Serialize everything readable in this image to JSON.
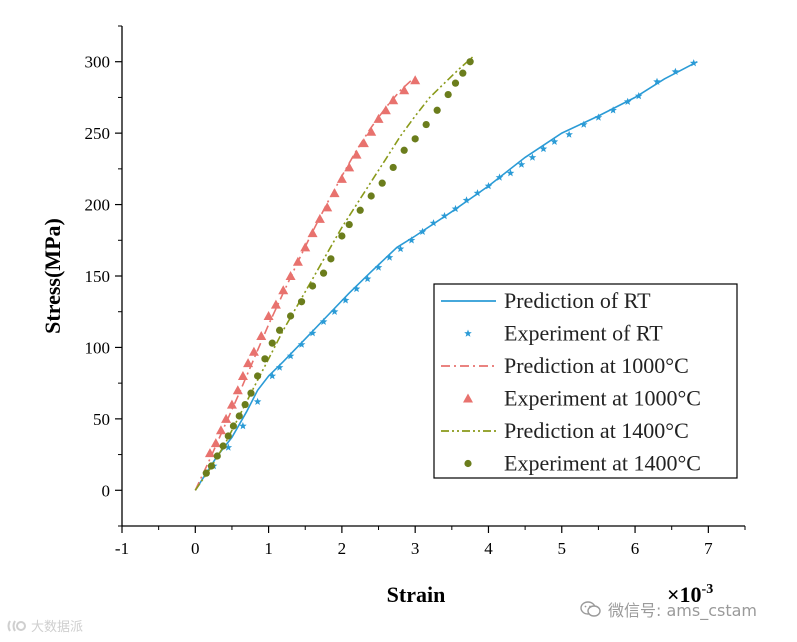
{
  "chart_data": {
    "type": "line",
    "title": "",
    "xlabel": "Strain",
    "x_multiplier": "×10",
    "x_multiplier_exp": "-3",
    "ylabel": "Stress(MPa)",
    "xlim": [
      -1,
      7.5
    ],
    "ylim": [
      -25,
      325
    ],
    "x_ticks": [
      -1,
      0,
      1,
      2,
      3,
      4,
      5,
      6,
      7
    ],
    "y_ticks": [
      0,
      50,
      100,
      150,
      200,
      250,
      300
    ],
    "grid": false,
    "legend_position": "lower-right",
    "series": [
      {
        "name": "Prediction of RT",
        "kind": "line",
        "style": "solid",
        "color": "#2b9bd6",
        "points": [
          [
            0,
            0
          ],
          [
            0.15,
            12
          ],
          [
            0.3,
            24
          ],
          [
            0.5,
            37
          ],
          [
            0.7,
            55
          ],
          [
            0.85,
            70
          ],
          [
            1.0,
            80
          ],
          [
            1.2,
            90
          ],
          [
            1.5,
            106
          ],
          [
            1.8,
            122
          ],
          [
            2.1,
            138
          ],
          [
            2.4,
            153
          ],
          [
            2.75,
            170
          ],
          [
            3.0,
            178
          ],
          [
            3.5,
            195
          ],
          [
            4.0,
            213
          ],
          [
            4.5,
            233
          ],
          [
            5.0,
            250
          ],
          [
            5.5,
            262
          ],
          [
            6.0,
            275
          ],
          [
            6.4,
            288
          ],
          [
            6.85,
            300
          ]
        ]
      },
      {
        "name": "Experiment of RT",
        "kind": "markers",
        "marker": "star",
        "color": "#2b9bd6",
        "points": [
          [
            0.25,
            17
          ],
          [
            0.45,
            30
          ],
          [
            0.65,
            45
          ],
          [
            0.85,
            62
          ],
          [
            1.05,
            80
          ],
          [
            1.15,
            86
          ],
          [
            1.3,
            94
          ],
          [
            1.45,
            102
          ],
          [
            1.6,
            110
          ],
          [
            1.75,
            118
          ],
          [
            1.9,
            125
          ],
          [
            2.05,
            133
          ],
          [
            2.2,
            141
          ],
          [
            2.35,
            148
          ],
          [
            2.5,
            156
          ],
          [
            2.65,
            163
          ],
          [
            2.8,
            169
          ],
          [
            2.95,
            175
          ],
          [
            3.1,
            181
          ],
          [
            3.25,
            187
          ],
          [
            3.4,
            192
          ],
          [
            3.55,
            197
          ],
          [
            3.7,
            203
          ],
          [
            3.85,
            208
          ],
          [
            4.0,
            213
          ],
          [
            4.15,
            219
          ],
          [
            4.3,
            222
          ],
          [
            4.45,
            228
          ],
          [
            4.6,
            233
          ],
          [
            4.75,
            239
          ],
          [
            4.9,
            244
          ],
          [
            5.1,
            249
          ],
          [
            5.3,
            256
          ],
          [
            5.5,
            261
          ],
          [
            5.7,
            266
          ],
          [
            5.9,
            272
          ],
          [
            6.05,
            276
          ],
          [
            6.3,
            286
          ],
          [
            6.55,
            293
          ],
          [
            6.8,
            299
          ]
        ]
      },
      {
        "name": "Prediction at 1000°C",
        "kind": "line",
        "style": "dash-dot",
        "color": "#e8726e",
        "points": [
          [
            0,
            0
          ],
          [
            0.2,
            22
          ],
          [
            0.4,
            45
          ],
          [
            0.6,
            68
          ],
          [
            0.8,
            92
          ],
          [
            1.0,
            116
          ],
          [
            1.2,
            138
          ],
          [
            1.4,
            160
          ],
          [
            1.6,
            181
          ],
          [
            1.8,
            201
          ],
          [
            2.0,
            220
          ],
          [
            2.2,
            238
          ],
          [
            2.4,
            254
          ],
          [
            2.6,
            268
          ],
          [
            2.8,
            280
          ],
          [
            2.95,
            287
          ]
        ]
      },
      {
        "name": "Experiment at 1000°C",
        "kind": "markers",
        "marker": "triangle",
        "color": "#e8726e",
        "points": [
          [
            0.2,
            26
          ],
          [
            0.28,
            33
          ],
          [
            0.35,
            42
          ],
          [
            0.42,
            50
          ],
          [
            0.5,
            60
          ],
          [
            0.58,
            70
          ],
          [
            0.65,
            80
          ],
          [
            0.72,
            89
          ],
          [
            0.8,
            97
          ],
          [
            0.9,
            108
          ],
          [
            1.0,
            122
          ],
          [
            1.1,
            130
          ],
          [
            1.2,
            140
          ],
          [
            1.3,
            150
          ],
          [
            1.4,
            160
          ],
          [
            1.5,
            170
          ],
          [
            1.6,
            180
          ],
          [
            1.7,
            190
          ],
          [
            1.8,
            198
          ],
          [
            1.9,
            208
          ],
          [
            2.0,
            218
          ],
          [
            2.1,
            226
          ],
          [
            2.2,
            235
          ],
          [
            2.3,
            243
          ],
          [
            2.4,
            251
          ],
          [
            2.5,
            260
          ],
          [
            2.6,
            266
          ],
          [
            2.7,
            273
          ],
          [
            2.85,
            280
          ],
          [
            3.0,
            287
          ]
        ]
      },
      {
        "name": "Prediction at 1400°C",
        "kind": "line",
        "style": "dash-dot-dot",
        "color": "#8a9a1a",
        "points": [
          [
            0,
            0
          ],
          [
            0.2,
            15
          ],
          [
            0.4,
            32
          ],
          [
            0.6,
            52
          ],
          [
            0.8,
            72
          ],
          [
            1.0,
            92
          ],
          [
            1.2,
            112
          ],
          [
            1.4,
            130
          ],
          [
            1.6,
            148
          ],
          [
            1.8,
            166
          ],
          [
            2.0,
            184
          ],
          [
            2.2,
            200
          ],
          [
            2.4,
            216
          ],
          [
            2.6,
            232
          ],
          [
            2.8,
            248
          ],
          [
            3.0,
            262
          ],
          [
            3.2,
            275
          ],
          [
            3.4,
            285
          ],
          [
            3.6,
            295
          ],
          [
            3.8,
            304
          ]
        ]
      },
      {
        "name": "Experiment at 1400°C",
        "kind": "markers",
        "marker": "circle",
        "color": "#6b7d1c",
        "points": [
          [
            0.15,
            12
          ],
          [
            0.22,
            17
          ],
          [
            0.3,
            24
          ],
          [
            0.38,
            31
          ],
          [
            0.45,
            38
          ],
          [
            0.52,
            45
          ],
          [
            0.6,
            52
          ],
          [
            0.68,
            60
          ],
          [
            0.76,
            68
          ],
          [
            0.85,
            80
          ],
          [
            0.95,
            92
          ],
          [
            1.05,
            103
          ],
          [
            1.15,
            112
          ],
          [
            1.3,
            122
          ],
          [
            1.45,
            132
          ],
          [
            1.6,
            143
          ],
          [
            1.75,
            152
          ],
          [
            1.85,
            162
          ],
          [
            2.0,
            178
          ],
          [
            2.1,
            186
          ],
          [
            2.25,
            196
          ],
          [
            2.4,
            206
          ],
          [
            2.55,
            215
          ],
          [
            2.7,
            226
          ],
          [
            2.85,
            238
          ],
          [
            3.0,
            246
          ],
          [
            3.15,
            256
          ],
          [
            3.3,
            266
          ],
          [
            3.45,
            277
          ],
          [
            3.55,
            285
          ],
          [
            3.65,
            292
          ],
          [
            3.75,
            300
          ]
        ]
      }
    ]
  },
  "watermarks": {
    "right": "微信号: ams_cstam",
    "left": "大数据派"
  }
}
